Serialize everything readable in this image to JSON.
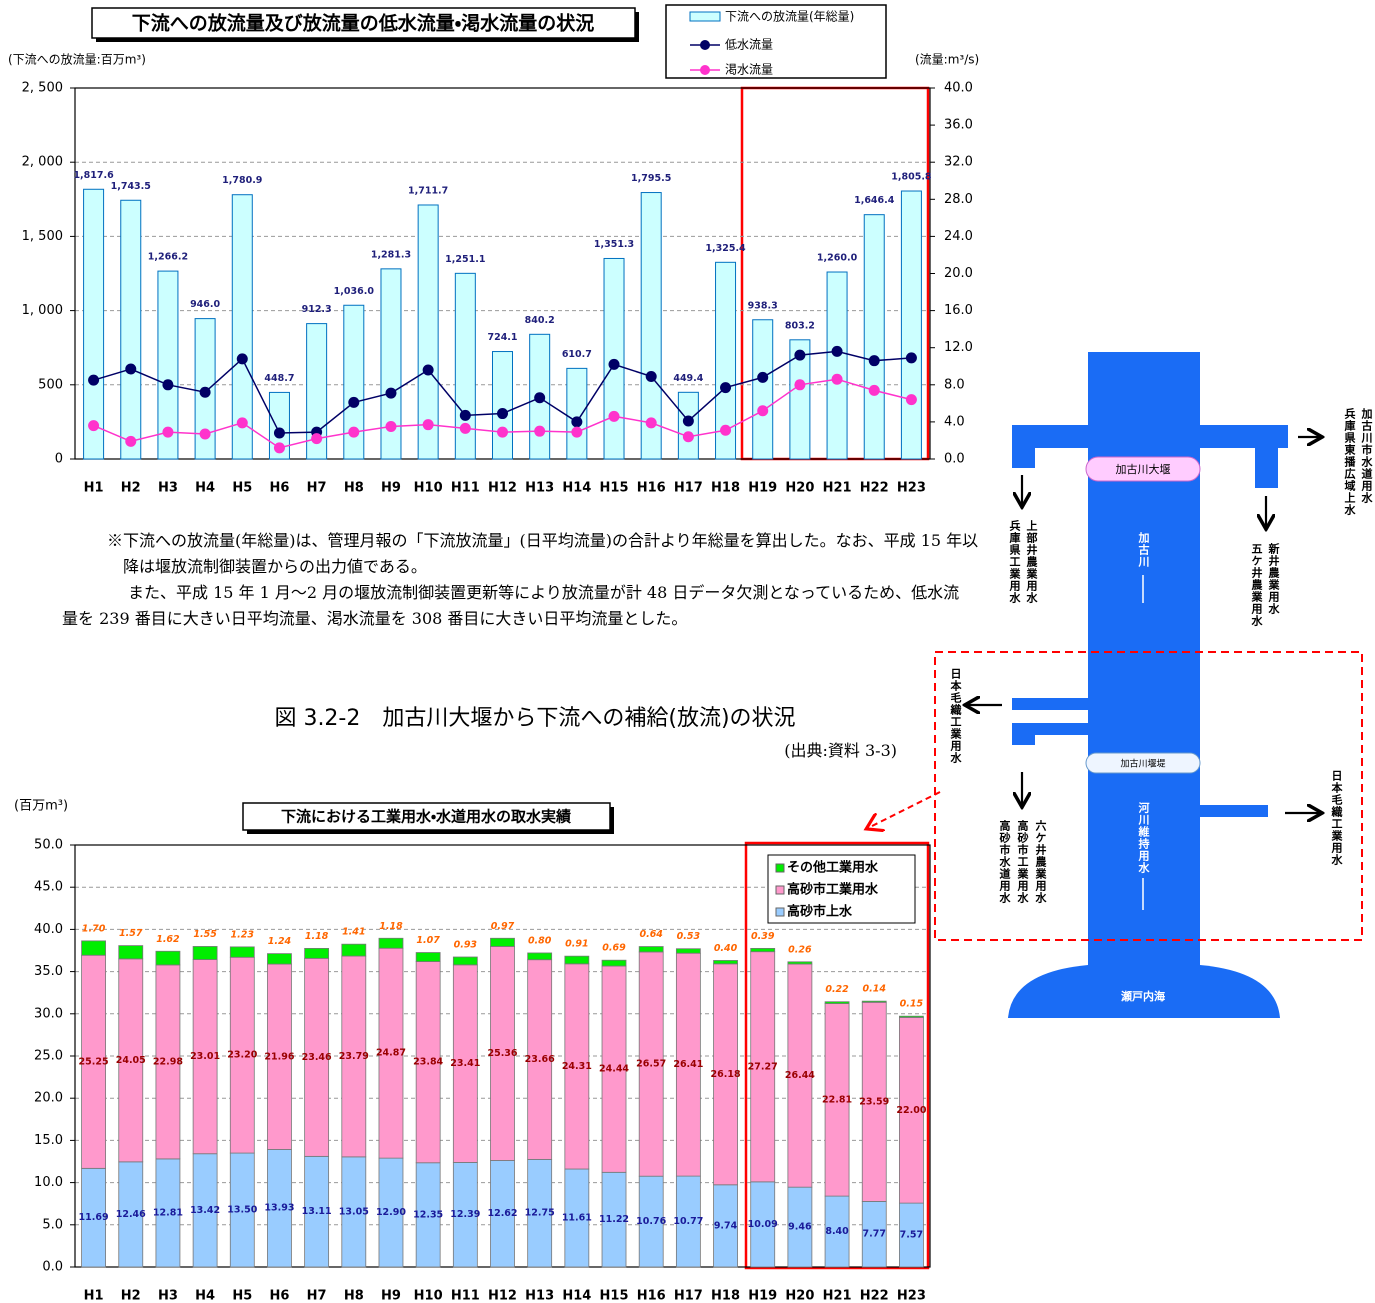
{
  "chart_data": [
    {
      "type": "bar",
      "title": "下流への放流量及び放流量の低水流量・渇水流量の状況",
      "y_label": "(下流への放流量:百万m³)",
      "y2_label": "(流量:m³/s)",
      "categories": [
        "H1",
        "H2",
        "H3",
        "H4",
        "H5",
        "H6",
        "H7",
        "H8",
        "H9",
        "H10",
        "H11",
        "H12",
        "H13",
        "H14",
        "H15",
        "H16",
        "H17",
        "H18",
        "H19",
        "H20",
        "H21",
        "H22",
        "H23"
      ],
      "series": [
        {
          "name": "下流への放流量(年総量)",
          "type": "bar",
          "color": "#ccffff",
          "values": [
            1817.6,
            1743.5,
            1266.2,
            946.0,
            1780.9,
            448.7,
            912.3,
            1036.0,
            1281.3,
            1711.7,
            1251.1,
            724.1,
            840.2,
            610.7,
            1351.3,
            1795.5,
            449.4,
            1325.4,
            938.3,
            803.2,
            1260.0,
            1646.4,
            1805.8
          ],
          "value_labels": [
            "1,817.6",
            "1,743.5",
            "1,266.2",
            "946.0",
            "1,780.9",
            "448.7",
            "912.3",
            "1,036.0",
            "1,281.3",
            "1,711.7",
            "1,251.1",
            "724.1",
            "840.2",
            "610.7",
            "1,351.3",
            "1,795.5",
            "449.4",
            "1,325.4",
            "938.3",
            "803.2",
            "1,260.0",
            "1,646.4",
            "1,805.8"
          ]
        },
        {
          "name": "低水流量",
          "type": "line",
          "axis": "y2",
          "color": "#000066",
          "values": [
            8.5,
            9.7,
            8.0,
            7.2,
            10.8,
            2.8,
            2.9,
            6.1,
            7.1,
            9.6,
            4.7,
            4.9,
            6.6,
            4.0,
            10.2,
            8.9,
            4.1,
            7.7,
            8.8,
            11.2,
            11.6,
            10.6,
            10.9
          ]
        },
        {
          "name": "渇水流量",
          "type": "line",
          "axis": "y2",
          "color": "#ff33cc",
          "values": [
            3.6,
            1.9,
            2.9,
            2.7,
            3.9,
            1.2,
            2.2,
            2.9,
            3.5,
            3.7,
            3.3,
            2.9,
            3.0,
            2.9,
            4.6,
            3.9,
            2.4,
            3.1,
            5.2,
            8.0,
            8.6,
            7.4,
            6.4
          ]
        }
      ],
      "ylim": [
        0,
        2500
      ],
      "yticks": [
        {
          "value": 0,
          "label": "0"
        },
        {
          "value": 500,
          "label": "500"
        },
        {
          "value": 1000,
          "label": "1, 000"
        },
        {
          "value": 1500,
          "label": "1, 500"
        },
        {
          "value": 2000,
          "label": "2, 000"
        },
        {
          "value": 2500,
          "label": "2, 500"
        }
      ],
      "y2lim": [
        0,
        40
      ],
      "y2ticks": [
        {
          "value": 0,
          "label": "0.0"
        },
        {
          "value": 4,
          "label": "4.0"
        },
        {
          "value": 8,
          "label": "8.0"
        },
        {
          "value": 12,
          "label": "12.0"
        },
        {
          "value": 16,
          "label": "16.0"
        },
        {
          "value": 20,
          "label": "20.0"
        },
        {
          "value": 24,
          "label": "24.0"
        },
        {
          "value": 28,
          "label": "28.0"
        },
        {
          "value": 32,
          "label": "32.0"
        },
        {
          "value": 36,
          "label": "36.0"
        },
        {
          "value": 40,
          "label": "40.0"
        }
      ],
      "grid": true
    },
    {
      "type": "stacked_bar",
      "title": "下流における工業用水・水道用水の取水実績",
      "y_label": "(百万m³)",
      "categories": [
        "H1",
        "H2",
        "H3",
        "H4",
        "H5",
        "H6",
        "H7",
        "H8",
        "H9",
        "H10",
        "H11",
        "H12",
        "H13",
        "H14",
        "H15",
        "H16",
        "H17",
        "H18",
        "H19",
        "H20",
        "H21",
        "H22",
        "H23"
      ],
      "series": [
        {
          "name": "高砂市上水",
          "color": "#99ccff",
          "values": [
            11.69,
            12.46,
            12.81,
            13.42,
            13.5,
            13.93,
            13.11,
            13.05,
            12.9,
            12.35,
            12.39,
            12.62,
            12.75,
            11.61,
            11.22,
            10.76,
            10.77,
            9.74,
            10.09,
            9.46,
            8.4,
            7.77,
            7.57
          ],
          "value_labels": [
            "11.69",
            "12.46",
            "12.81",
            "13.42",
            "13.50",
            "13.93",
            "13.11",
            "13.05",
            "12.90",
            "12.35",
            "12.39",
            "12.62",
            "12.75",
            "11.61",
            "11.22",
            "10.76",
            "10.77",
            "9.74",
            "10.09",
            "9.46",
            "8.40",
            "7.77",
            "7.57"
          ]
        },
        {
          "name": "高砂市工業用水",
          "color": "#ff99cc",
          "values": [
            25.25,
            24.05,
            22.98,
            23.01,
            23.2,
            21.96,
            23.46,
            23.79,
            24.87,
            23.84,
            23.41,
            25.36,
            23.66,
            24.31,
            24.44,
            26.57,
            26.41,
            26.18,
            27.27,
            26.44,
            22.81,
            23.59,
            22.0
          ],
          "value_labels": [
            "25.25",
            "24.05",
            "22.98",
            "23.01",
            "23.20",
            "21.96",
            "23.46",
            "23.79",
            "24.87",
            "23.84",
            "23.41",
            "25.36",
            "23.66",
            "24.31",
            "24.44",
            "26.57",
            "26.41",
            "26.18",
            "27.27",
            "26.44",
            "22.81",
            "23.59",
            "22.00"
          ]
        },
        {
          "name": "その他工業用水",
          "color": "#00ee00",
          "values": [
            1.7,
            1.57,
            1.62,
            1.55,
            1.23,
            1.24,
            1.18,
            1.41,
            1.18,
            1.07,
            0.93,
            0.97,
            0.8,
            0.91,
            0.69,
            0.64,
            0.53,
            0.4,
            0.39,
            0.26,
            0.22,
            0.14,
            0.15
          ],
          "value_labels": [
            "1.70",
            "1.57",
            "1.62",
            "1.55",
            "1.23",
            "1.24",
            "1.18",
            "1.41",
            "1.18",
            "1.07",
            "0.93",
            "0.97",
            "0.80",
            "0.91",
            "0.69",
            "0.64",
            "0.53",
            "0.40",
            "0.39",
            "0.26",
            "0.22",
            "0.14",
            "0.15"
          ]
        }
      ],
      "ylim": [
        0,
        50
      ],
      "yticks": [
        {
          "value": 0,
          "label": "0.0"
        },
        {
          "value": 5,
          "label": "5.0"
        },
        {
          "value": 10,
          "label": "10.0"
        },
        {
          "value": 15,
          "label": "15.0"
        },
        {
          "value": 20,
          "label": "20.0"
        },
        {
          "value": 25,
          "label": "25.0"
        },
        {
          "value": 30,
          "label": "30.0"
        },
        {
          "value": 35,
          "label": "35.0"
        },
        {
          "value": 40,
          "label": "40.0"
        },
        {
          "value": 45,
          "label": "45.0"
        },
        {
          "value": 50,
          "label": "50.0"
        }
      ],
      "grid": true
    }
  ],
  "note": [
    "※下流への放流量(年総量)は、管理月報の「下流放流量」(日平均流量)の合計より年総量を算出した。なお、平成 15 年以降は堰放流制御装置からの出力値である。",
    "また、平成 15 年 1 月～2 月の堰放流制御装置更新等により放流量が計 48 日データ欠測となっているため、低水流量を 239 番目に大きい日平均流量、渇水流量を 308 番目に大きい日平均流量とした。"
  ],
  "figure_caption": "図 3.2-2　加古川大堰から下流への補給(放流)の状況",
  "source": "(出典:資料 3-3)",
  "diagram": {
    "weir_1": "加古川大堰",
    "weir_2": "加古川堰堤",
    "river": "加古川",
    "maintenance_flow": "河川維持用水",
    "sea": "瀬戸内海",
    "intakes": [
      [
        "上部井農業用水",
        "兵庫県工業用水"
      ],
      [
        "加古川市水道用水",
        "兵庫県東播広域上水"
      ],
      [
        "新井農業用水",
        "五ケ井農業用水"
      ],
      [
        "日本毛織工業用水"
      ],
      [
        "六ケ井農業用水",
        "高砂市工業用水",
        "高砂市水道用水"
      ],
      [
        "日本毛織工業用水"
      ]
    ]
  }
}
